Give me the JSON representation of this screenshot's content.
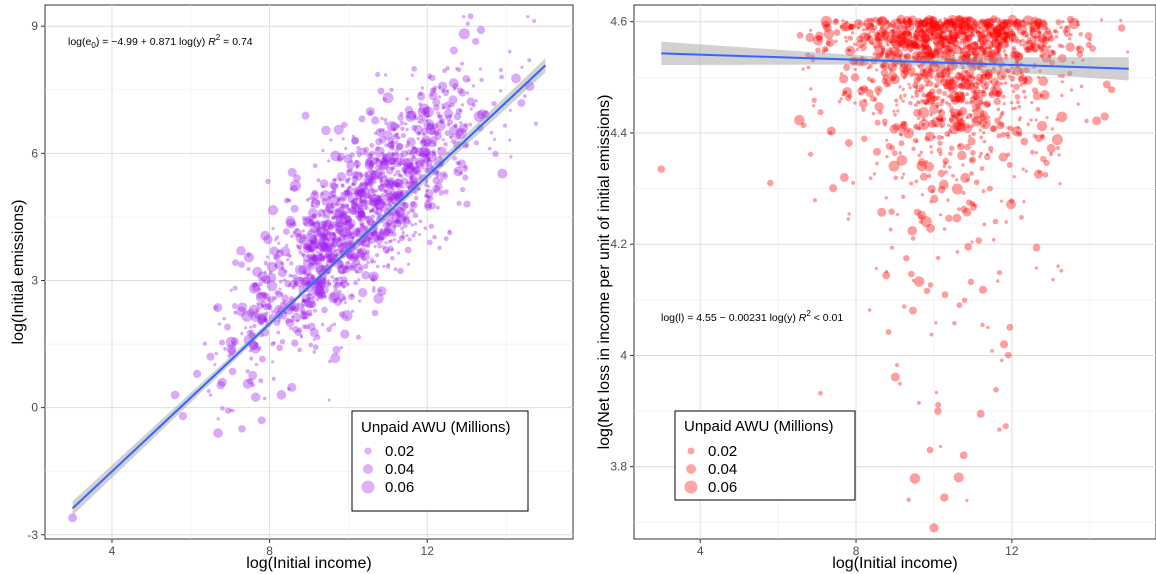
{
  "chart_data": [
    {
      "type": "scatter",
      "xlabel": "log(Initial income)",
      "ylabel": "log(Initial emissions)",
      "xlim": [
        2.3,
        15.7
      ],
      "ylim": [
        -3.1,
        9.5
      ],
      "x_ticks": [
        4,
        8,
        12
      ],
      "y_ticks": [
        -3,
        0,
        3,
        6,
        9
      ],
      "grid": true,
      "point_color": "#a020f0",
      "fit_line": {
        "intercept": -4.99,
        "slope": 0.871,
        "x_range": [
          3.0,
          15.0
        ],
        "color": "#3366ff"
      },
      "annotation": {
        "prefix": "log(e",
        "sub": "0",
        "body": ") = −4.99 + 0.871 log(y)   ",
        "r2_label": "R",
        "r2_sup": "2",
        "r2_value": " = 0.74"
      },
      "cloud": {
        "n": 1500,
        "x_mean": 10.3,
        "x_sd": 1.55,
        "noise_sd": 0.95
      },
      "outliers": [
        [
          3.0,
          -2.6
        ],
        [
          5.6,
          0.3
        ],
        [
          5.8,
          -0.2
        ],
        [
          6.5,
          1.2
        ],
        [
          6.8,
          0.6
        ],
        [
          7.3,
          -0.5
        ],
        [
          7.8,
          -0.3
        ],
        [
          8.3,
          0.3
        ]
      ],
      "legend": {
        "title": "Unpaid AWU (Millions)",
        "labels": [
          "0.02",
          "0.04",
          "0.06"
        ],
        "position": "bottom-right"
      }
    },
    {
      "type": "scatter",
      "xlabel": "log(Initial income)",
      "ylabel": "log(Net loss in income per unit of initial emissions)",
      "xlim": [
        2.3,
        15.7
      ],
      "ylim": [
        3.67,
        4.63
      ],
      "x_ticks": [
        4,
        8,
        12
      ],
      "y_ticks": [
        3.8,
        4.0,
        4.2,
        4.4,
        4.6
      ],
      "grid": true,
      "point_color": "#ff0000",
      "fit_line": {
        "intercept": 4.55,
        "slope": -0.00231,
        "x_range": [
          3.0,
          15.0
        ],
        "color": "#3366ff"
      },
      "annotation": {
        "prefix": "log(l) = 4.55 − 0.00231 log(y)   ",
        "sub": "",
        "body": "",
        "r2_label": "R",
        "r2_sup": "2",
        "r2_value": " < 0.01"
      },
      "cloud": {
        "n": 1500,
        "x_mean": 10.4,
        "x_sd": 1.45,
        "cap": 4.605
      },
      "outliers": [
        [
          3.0,
          4.335
        ],
        [
          5.8,
          4.31
        ],
        [
          7.7,
          4.32
        ],
        [
          9.9,
          3.83
        ],
        [
          10.0,
          3.69
        ],
        [
          10.1,
          3.9
        ],
        [
          11.2,
          3.895
        ],
        [
          11.8,
          4.02
        ]
      ],
      "legend": {
        "title": "Unpaid AWU (Millions)",
        "labels": [
          "0.02",
          "0.04",
          "0.06"
        ],
        "position": "bottom-left"
      }
    }
  ]
}
